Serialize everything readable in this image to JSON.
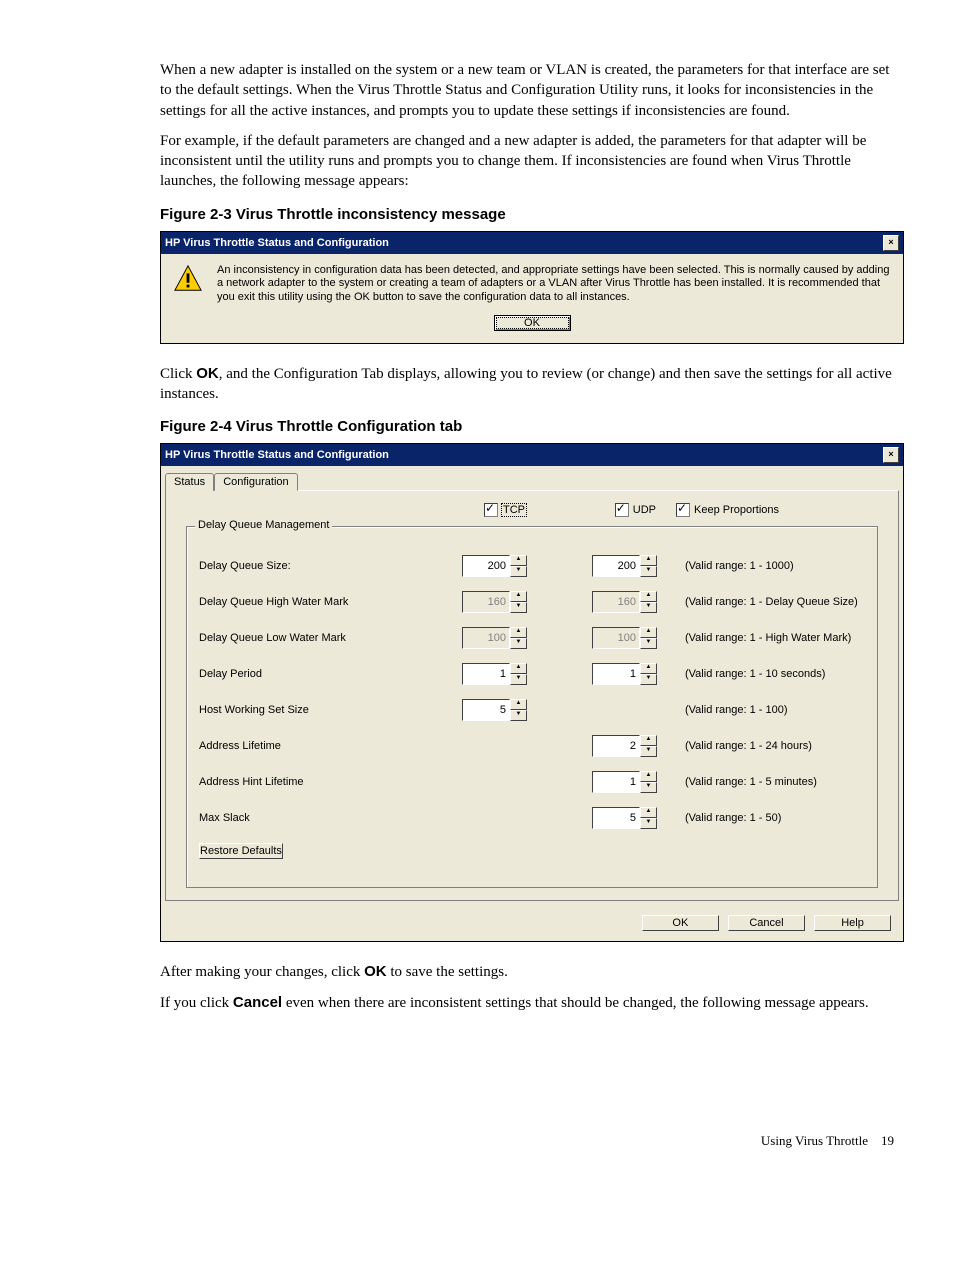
{
  "para1": "When a new adapter is installed on the system or a new team or VLAN is created, the parameters for that interface are set to the default settings. When the Virus Throttle Status and Configuration Utility runs, it looks for inconsistencies in the settings for all the active instances, and prompts you to update these settings if inconsistencies are found.",
  "para2": "For example, if the default parameters are changed and a new adapter is added, the parameters for that adapter will be inconsistent until the utility runs and prompts you to change them. If inconsistencies are found when Virus Throttle launches, the following message appears:",
  "fig1_caption": "Figure 2-3 Virus Throttle inconsistency message",
  "dialog1": {
    "title": "HP Virus Throttle Status and Configuration",
    "message": "An inconsistency in configuration data has been detected, and appropriate settings have been selected.  This is normally caused by adding a network adapter to the system or creating a team of adapters or a VLAN after Virus Throttle has been installed.  It is recommended that you exit this utility using the OK button to save the configuration data to all instances.",
    "ok": "OK"
  },
  "para3a": "Click ",
  "para3b": "OK",
  "para3c": ", and the Configuration Tab displays, allowing you to review (or change) and then save the settings for all active instances.",
  "fig2_caption": "Figure 2-4 Virus Throttle Configuration tab",
  "dialog2": {
    "title": "HP Virus Throttle Status and Configuration",
    "tab_status": "Status",
    "tab_config": "Configuration",
    "chk_tcp": "TCP",
    "chk_udp": "UDP",
    "chk_keep": "Keep Proportions",
    "group_title": "Delay Queue Management",
    "rows": {
      "dqs": {
        "label": "Delay Queue Size:",
        "tcp": "200",
        "udp": "200",
        "hint": "(Valid range: 1 - 1000)",
        "tcp_en": true,
        "udp_en": true
      },
      "hw": {
        "label": "Delay Queue High Water Mark",
        "tcp": "160",
        "udp": "160",
        "hint": "(Valid range: 1 - Delay Queue Size)",
        "tcp_en": false,
        "udp_en": false
      },
      "lw": {
        "label": "Delay Queue Low Water Mark",
        "tcp": "100",
        "udp": "100",
        "hint": "(Valid range: 1 - High Water Mark)",
        "tcp_en": false,
        "udp_en": false
      },
      "dp": {
        "label": "Delay Period",
        "tcp": "1",
        "udp": "1",
        "hint": "(Valid range: 1 - 10 seconds)",
        "tcp_en": true,
        "udp_en": true
      },
      "hws": {
        "label": "Host Working Set Size",
        "tcp": "5",
        "udp": "",
        "hint": "(Valid range: 1 - 100)",
        "tcp_en": true,
        "udp_en": false
      },
      "al": {
        "label": "Address Lifetime",
        "tcp": "",
        "udp": "2",
        "hint": "(Valid range: 1 - 24 hours)",
        "tcp_en": false,
        "udp_en": true
      },
      "ahl": {
        "label": "Address Hint Lifetime",
        "tcp": "",
        "udp": "1",
        "hint": "(Valid range: 1 - 5 minutes)",
        "tcp_en": false,
        "udp_en": true
      },
      "ms": {
        "label": "Max Slack",
        "tcp": "",
        "udp": "5",
        "hint": "(Valid range: 1 - 50)",
        "tcp_en": false,
        "udp_en": true
      }
    },
    "restore": "Restore Defaults",
    "ok": "OK",
    "cancel": "Cancel",
    "help": "Help"
  },
  "para4a": "After making your changes, click ",
  "para4b": "OK",
  "para4c": " to save the settings.",
  "para5a": "If you click ",
  "para5b": "Cancel",
  "para5c": " even when there are inconsistent settings that should be changed, the following message appears.",
  "footer_text": "Using Virus Throttle",
  "footer_page": "19",
  "colors": {
    "titlebar_bg": "#0a246a",
    "dialog_bg": "#ece9d8",
    "warn_fill": "#ffcc00",
    "warn_stroke": "#000000"
  }
}
